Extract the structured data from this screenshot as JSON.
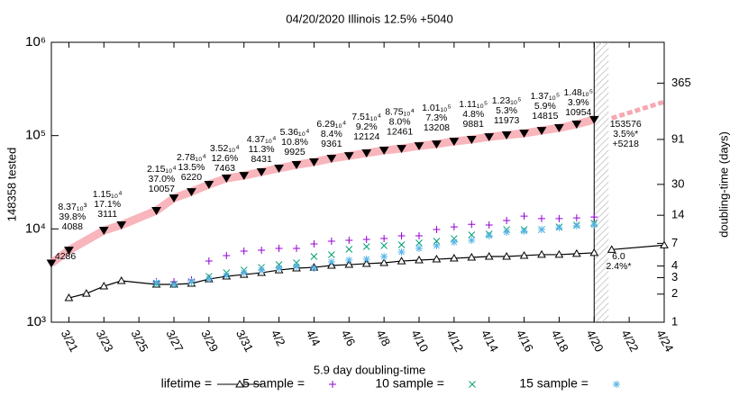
{
  "chart_data": {
    "type": "line",
    "title": "04/20/2020 Illinois 12.5% +5040",
    "ylabel": "148358 tested",
    "y2label": "doubling-time (days)",
    "xlabel": "5.9 day doubling-time",
    "log_y": true,
    "log_y2": true,
    "xlim": [
      80,
      115
    ],
    "ylim": [
      1000,
      1000000
    ],
    "y2lim": [
      1,
      1000
    ],
    "xticks": [
      {
        "value": 81,
        "label": "3/21"
      },
      {
        "value": 83,
        "label": "3/23"
      },
      {
        "value": 85,
        "label": "3/25"
      },
      {
        "value": 87,
        "label": "3/27"
      },
      {
        "value": 89,
        "label": "3/29"
      },
      {
        "value": 91,
        "label": "3/31"
      },
      {
        "value": 93,
        "label": "4/2"
      },
      {
        "value": 95,
        "label": "4/4"
      },
      {
        "value": 97,
        "label": "4/6"
      },
      {
        "value": 99,
        "label": "4/8"
      },
      {
        "value": 101,
        "label": "4/10"
      },
      {
        "value": 103,
        "label": "4/12"
      },
      {
        "value": 105,
        "label": "4/14"
      },
      {
        "value": 107,
        "label": "4/16"
      },
      {
        "value": 109,
        "label": "4/18"
      },
      {
        "value": 111,
        "label": "4/20"
      },
      {
        "value": 113,
        "label": "4/22"
      },
      {
        "value": 115,
        "label": "4/24"
      }
    ],
    "yticks": [
      {
        "value": 1000,
        "label": "10³"
      },
      {
        "value": 10000,
        "label": "10⁴"
      },
      {
        "value": 100000,
        "label": "10⁵"
      },
      {
        "value": 1000000,
        "label": "10⁶"
      }
    ],
    "y2ticks": [
      1,
      2,
      3,
      4,
      7,
      14,
      30,
      91,
      365
    ],
    "series": [
      {
        "name": "lifetime =",
        "color": "#000000",
        "marker": "triangle",
        "line": true,
        "axis": "y2",
        "x": [
          81,
          82,
          83,
          84,
          86,
          87,
          88,
          89,
          90,
          91,
          92,
          93,
          94,
          95,
          96,
          97,
          98,
          99,
          100,
          101,
          102,
          103,
          104,
          105,
          106,
          107,
          108,
          109,
          110,
          111
        ],
        "values": [
          1.82,
          2.03,
          2.43,
          2.78,
          2.54,
          2.54,
          2.6,
          2.9,
          3.1,
          3.24,
          3.39,
          3.62,
          3.79,
          3.87,
          4.05,
          4.14,
          4.24,
          4.33,
          4.52,
          4.63,
          4.73,
          4.84,
          4.95,
          5.06,
          5.06,
          5.18,
          5.3,
          5.3,
          5.42,
          5.54
        ]
      },
      {
        "name": "5 sample =",
        "color": "#9400d3",
        "marker": "plus",
        "line": false,
        "axis": "y2",
        "x": [
          86,
          87,
          88,
          89,
          90,
          91,
          92,
          93,
          94,
          95,
          96,
          97,
          98,
          99,
          100,
          101,
          102,
          103,
          104,
          105,
          106,
          107,
          108,
          109,
          110,
          111
        ],
        "values": [
          2.72,
          2.72,
          2.84,
          4.53,
          5.17,
          5.78,
          5.91,
          6.18,
          6.18,
          6.9,
          7.38,
          7.54,
          7.71,
          7.88,
          8.43,
          8.43,
          9.84,
          10.5,
          11.2,
          11.0,
          12.3,
          13.7,
          12.9,
          12.9,
          13.1,
          13.4
        ]
      },
      {
        "name": "10 sample =",
        "color": "#009e73",
        "marker": "cross",
        "line": false,
        "axis": "y2",
        "x": [
          86,
          87,
          88,
          89,
          90,
          91,
          92,
          93,
          94,
          95,
          96,
          97,
          98,
          99,
          100,
          101,
          102,
          103,
          104,
          105,
          106,
          107,
          108,
          109,
          110,
          111
        ],
        "values": [
          2.6,
          2.54,
          2.72,
          3.1,
          3.39,
          3.62,
          3.87,
          4.14,
          4.33,
          5.06,
          5.29,
          6.04,
          6.46,
          6.61,
          6.75,
          7.06,
          7.38,
          7.88,
          8.62,
          8.81,
          9.84,
          9.84,
          9.84,
          10.5,
          11.0,
          11.5
        ]
      },
      {
        "name": "15 sample =",
        "color": "#56b4e9",
        "marker": "star",
        "line": false,
        "axis": "y2",
        "x": [
          86,
          87,
          88,
          89,
          90,
          91,
          92,
          93,
          94,
          95,
          96,
          97,
          98,
          99,
          100,
          101,
          102,
          103,
          104,
          105,
          106,
          107,
          108,
          109,
          110,
          111
        ],
        "values": [
          2.66,
          2.54,
          2.72,
          2.9,
          3.17,
          3.39,
          3.62,
          3.79,
          3.96,
          3.79,
          4.43,
          4.63,
          4.73,
          5.06,
          5.65,
          6.18,
          6.61,
          7.22,
          7.54,
          8.43,
          9.23,
          9.43,
          9.84,
          10.3,
          10.8,
          11.0
        ]
      },
      {
        "color": "#000000",
        "band_color": "#f7a8b0",
        "marker": "triangle-down",
        "line": false,
        "x": [
          80,
          81,
          83,
          84,
          86,
          87,
          88,
          89,
          90,
          91,
          92,
          93,
          94,
          95,
          96,
          97,
          98,
          99,
          100,
          101,
          102,
          103,
          104,
          105,
          106,
          107,
          108,
          109,
          110,
          111
        ],
        "values": [
          4286,
          5900,
          9630,
          11000,
          15700,
          21400,
          25000,
          29900,
          34900,
          37300,
          40800,
          44600,
          48700,
          52100,
          56900,
          60800,
          65000,
          69500,
          72600,
          77600,
          81100,
          86700,
          90700,
          96900,
          101400,
          105900,
          113200,
          121100,
          132400,
          148358
        ]
      },
      {
        "color": "#f7a8b0",
        "marker": "none",
        "line": true,
        "dashed": true,
        "x": [
          112,
          115
        ],
        "values": [
          153576,
          230000
        ]
      },
      {
        "color": "#000000",
        "marker": "triangle",
        "line": true,
        "axis": "y2",
        "x": [
          112,
          115
        ],
        "values": [
          6.0,
          6.7
        ]
      }
    ],
    "annotations": [
      {
        "x": 81.2,
        "y": 17100,
        "lines": [
          "8.37₁₀³",
          "39.8%",
          "4088"
        ]
      },
      {
        "x": 83.2,
        "y": 23400,
        "lines": [
          "1.15₁₀⁴",
          "17.1%",
          "3111"
        ]
      },
      {
        "x": 86.3,
        "y": 43600,
        "lines": [
          "2.15₁₀⁴",
          "37.0%",
          "10057"
        ]
      },
      {
        "x": 88.0,
        "y": 58200,
        "lines": [
          "2.78₁₀⁴",
          "13.5%",
          "6220"
        ]
      },
      {
        "x": 89.9,
        "y": 72600,
        "lines": [
          "3.52₁₀⁴",
          "12.6%",
          "7463"
        ]
      },
      {
        "x": 92.0,
        "y": 90700,
        "lines": [
          "4.37₁₀⁴",
          "11.3%",
          "8431"
        ]
      },
      {
        "x": 93.9,
        "y": 108000,
        "lines": [
          "5.36₁₀⁴",
          "10.8%",
          "9925"
        ]
      },
      {
        "x": 96.0,
        "y": 132000,
        "lines": [
          "6.29₁₀⁴",
          "8.4%",
          "9361"
        ]
      },
      {
        "x": 98.0,
        "y": 158000,
        "lines": [
          "7.51₁₀⁴",
          "9.2%",
          "12124"
        ]
      },
      {
        "x": 99.9,
        "y": 177000,
        "lines": [
          "8.75₁₀⁴",
          "8.0%",
          "12461"
        ]
      },
      {
        "x": 102.0,
        "y": 197000,
        "lines": [
          "1.01₁₀⁵",
          "7.3%",
          "13208"
        ]
      },
      {
        "x": 104.1,
        "y": 216000,
        "lines": [
          "1.11₁₀⁵",
          "4.8%",
          "9881"
        ]
      },
      {
        "x": 106.0,
        "y": 236000,
        "lines": [
          "1.23₁₀⁵",
          "5.3%",
          "11973"
        ]
      },
      {
        "x": 108.2,
        "y": 263000,
        "lines": [
          "1.37₁₀⁵",
          "5.9%",
          "14815"
        ]
      },
      {
        "x": 110.1,
        "y": 288000,
        "lines": [
          "1.48₁₀⁵",
          "3.9%",
          "10954"
        ]
      },
      {
        "x": 80.8,
        "y": 5060,
        "lines": [
          "4286"
        ]
      },
      {
        "x": 112.8,
        "y": 132000,
        "lines": [
          "153576",
          "3.5%*",
          "+5218"
        ]
      },
      {
        "x": 112.4,
        "y": 5060,
        "lines": [
          "6.0",
          "2.4%*"
        ]
      }
    ]
  }
}
